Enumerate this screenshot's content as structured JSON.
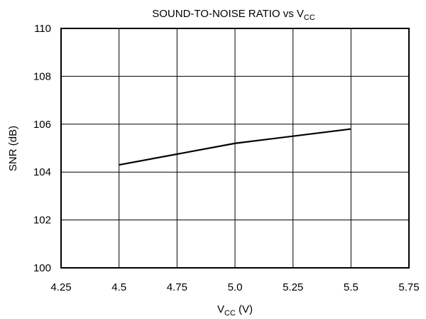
{
  "chart_data": {
    "type": "line",
    "title": {
      "main": "SOUND-TO-NOISE RATIO vs V",
      "sub": "CC"
    },
    "xlabel": {
      "main": "V",
      "sub": "CC",
      "suffix": " (V)"
    },
    "ylabel": "SNR (dB)",
    "xlim": [
      4.25,
      5.75
    ],
    "ylim": [
      100,
      110
    ],
    "xticks": [
      4.25,
      4.5,
      4.75,
      5.0,
      5.25,
      5.5,
      5.75
    ],
    "xtick_labels": [
      "4.25",
      "4.5",
      "4.75",
      "5.0",
      "5.25",
      "5.5",
      "5.75"
    ],
    "yticks": [
      100,
      102,
      104,
      106,
      108,
      110
    ],
    "ytick_labels": [
      "100",
      "102",
      "104",
      "106",
      "108",
      "110"
    ],
    "grid": true,
    "series": [
      {
        "x": [
          4.5,
          5.0,
          5.5
        ],
        "values": [
          104.3,
          105.2,
          105.8
        ],
        "color": "#000000"
      }
    ]
  }
}
